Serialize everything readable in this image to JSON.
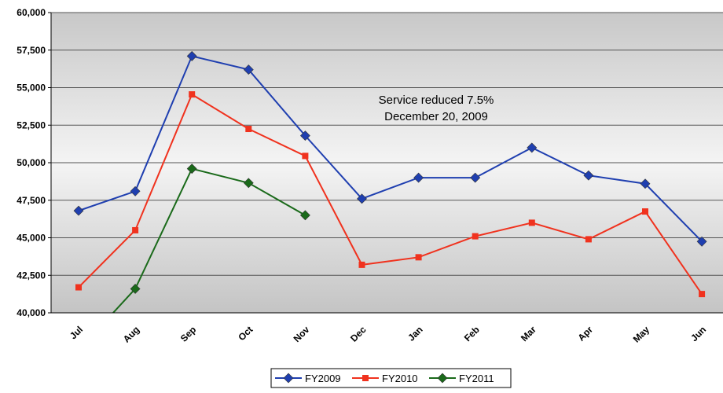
{
  "chart_data": {
    "type": "line",
    "categories": [
      "Jul",
      "Aug",
      "Sep",
      "Oct",
      "Nov",
      "Dec",
      "Jan",
      "Feb",
      "Mar",
      "Apr",
      "May",
      "Jun"
    ],
    "series": [
      {
        "name": "FY2009",
        "color": "#1f3fb0",
        "marker": "diamond",
        "values": [
          46800,
          48100,
          57100,
          56200,
          51800,
          47600,
          49000,
          49000,
          51000,
          49150,
          48600,
          44750
        ]
      },
      {
        "name": "FY2010",
        "color": "#f0321e",
        "marker": "square",
        "values": [
          41700,
          45500,
          54550,
          52250,
          50450,
          43200,
          43700,
          45100,
          46000,
          44900,
          46750,
          41250
        ]
      },
      {
        "name": "FY2011",
        "color": "#1a6a1a",
        "marker": "diamond",
        "values": [
          37500,
          41600,
          49600,
          48650,
          46500,
          null,
          null,
          null,
          null,
          null,
          null,
          null
        ]
      }
    ],
    "ylim": [
      40000,
      60000
    ],
    "yticks": [
      {
        "value": 40000,
        "label": "40,000"
      },
      {
        "value": 42500,
        "label": "42,500"
      },
      {
        "value": 45000,
        "label": "45,000"
      },
      {
        "value": 47500,
        "label": "47,500"
      },
      {
        "value": 50000,
        "label": "50,000"
      },
      {
        "value": 52500,
        "label": "52,500"
      },
      {
        "value": 55000,
        "label": "55,000"
      },
      {
        "value": 57500,
        "label": "57,500"
      },
      {
        "value": 60000,
        "label": "60,000"
      }
    ],
    "grid": true,
    "annotation": [
      "Service reduced 7.5%",
      "December 20, 2009"
    ],
    "legend": "bottom"
  }
}
